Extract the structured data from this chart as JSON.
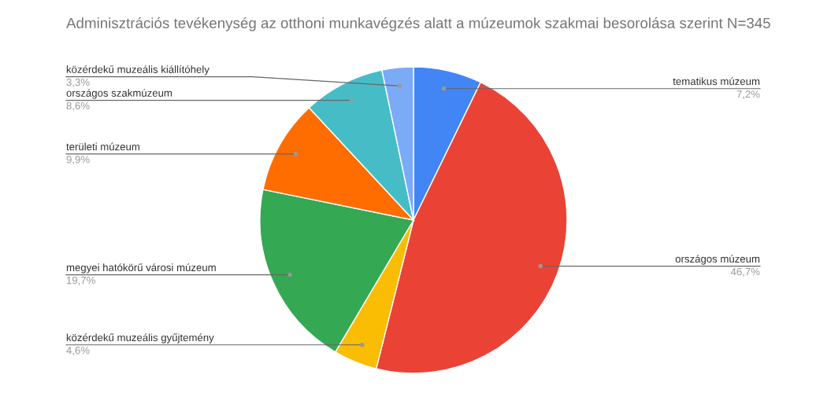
{
  "chart_data": {
    "type": "pie",
    "title": "Adminisztrációs tevékenység az otthoni munkavégzés alatt a múzeumok szakmai besorolása szerint N=345",
    "categories": [
      "tematikus múzeum",
      "országos múzeum",
      "közérdekű muzeális gyűjtemény",
      "megyei hatókörű városi múzeum",
      "területi múzeum",
      "országos szakmúzeum",
      "közérdekű muzeális kiállítóhely"
    ],
    "values": [
      7.2,
      46.7,
      4.6,
      19.7,
      9.9,
      8.6,
      3.3
    ],
    "value_labels": [
      "7,2%",
      "46,7%",
      "4,6%",
      "19,7%",
      "9,9%",
      "8,6%",
      "3,3%"
    ],
    "colors": [
      "#4285f4",
      "#ea4335",
      "#fbbc04",
      "#34a853",
      "#ff6d01",
      "#46bdc6",
      "#7baaf7"
    ],
    "legend": false
  }
}
